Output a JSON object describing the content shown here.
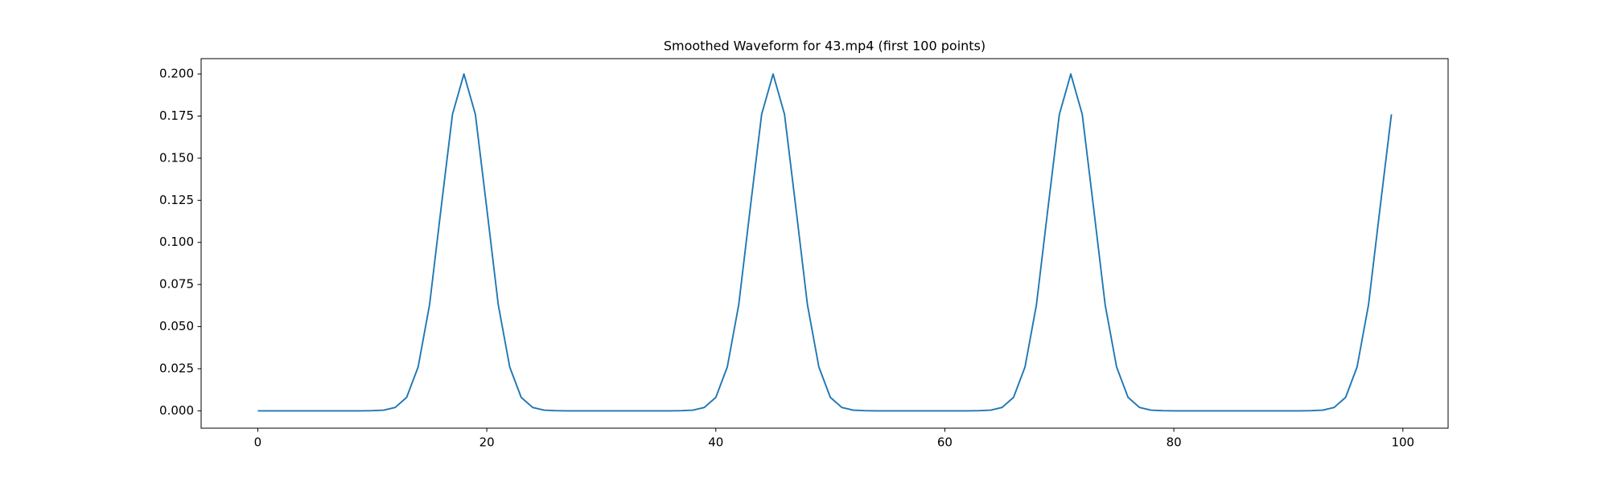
{
  "chart_data": {
    "type": "line",
    "title": "Smoothed Waveform for 43.mp4 (first 100 points)",
    "x": [
      0,
      1,
      2,
      3,
      4,
      5,
      6,
      7,
      8,
      9,
      10,
      11,
      12,
      13,
      14,
      15,
      16,
      17,
      18,
      19,
      20,
      21,
      22,
      23,
      24,
      25,
      26,
      27,
      28,
      29,
      30,
      31,
      32,
      33,
      34,
      35,
      36,
      37,
      38,
      39,
      40,
      41,
      42,
      43,
      44,
      45,
      46,
      47,
      48,
      49,
      50,
      51,
      52,
      53,
      54,
      55,
      56,
      57,
      58,
      59,
      60,
      61,
      62,
      63,
      64,
      65,
      66,
      67,
      68,
      69,
      70,
      71,
      72,
      73,
      74,
      75,
      76,
      77,
      78,
      79,
      80,
      81,
      82,
      83,
      84,
      85,
      86,
      87,
      88,
      89,
      90,
      91,
      92,
      93,
      94,
      95,
      96,
      97,
      98,
      99
    ],
    "series": [
      {
        "color": "#1f77b4",
        "values": [
          0,
          0,
          0,
          0,
          0,
          0,
          0,
          0,
          0,
          0,
          0.0001,
          0.0004,
          0.002,
          0.008,
          0.026,
          0.063,
          0.12,
          0.176,
          0.2,
          0.176,
          0.12,
          0.063,
          0.026,
          0.008,
          0.002,
          0.0004,
          0.0001,
          0,
          0,
          0,
          0,
          0,
          0,
          0,
          0,
          0,
          0,
          0.0001,
          0.0004,
          0.002,
          0.008,
          0.026,
          0.063,
          0.12,
          0.176,
          0.2,
          0.176,
          0.12,
          0.063,
          0.026,
          0.008,
          0.002,
          0.0004,
          0.0001,
          0,
          0,
          0,
          0,
          0,
          0,
          0,
          0,
          0,
          0.0001,
          0.0004,
          0.002,
          0.008,
          0.026,
          0.063,
          0.12,
          0.176,
          0.2,
          0.176,
          0.12,
          0.063,
          0.026,
          0.008,
          0.002,
          0.0004,
          0.0001,
          0,
          0,
          0,
          0,
          0,
          0,
          0,
          0,
          0,
          0,
          0,
          0,
          0.0001,
          0.0004,
          0.002,
          0.008,
          0.026,
          0.063,
          0.12,
          0.176
        ]
      }
    ],
    "xlim": [
      -4.95,
      103.95
    ],
    "xticks": [
      0,
      20,
      40,
      60,
      80,
      100
    ],
    "ylim": [
      -0.0103,
      0.2091
    ],
    "yticks": [
      {
        "value": 0,
        "label": "0.000"
      },
      {
        "value": 0.025,
        "label": "0.025"
      },
      {
        "value": 0.05,
        "label": "0.050"
      },
      {
        "value": 0.075,
        "label": "0.075"
      },
      {
        "value": 0.1,
        "label": "0.100"
      },
      {
        "value": 0.125,
        "label": "0.125"
      },
      {
        "value": 0.15,
        "label": "0.150"
      },
      {
        "value": 0.175,
        "label": "0.175"
      },
      {
        "value": 0.2,
        "label": "0.200"
      }
    ],
    "grid": false
  }
}
